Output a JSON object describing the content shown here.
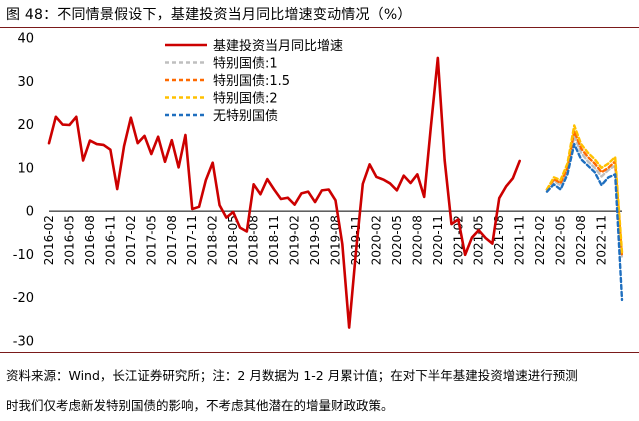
{
  "title": "图 48：不同情景假设下，基建投资当月同比增速变动情况（%）",
  "source_note_line1": "资料来源：Wind，长江证券研究所；注：2 月数据为 1-2 月累计值；在对下半年基建投资增速进行预测",
  "source_note_line2": "时我们仅考虑新发特别国债的影响，不考虑其他潜在的增量财政政策。",
  "colors": {
    "actual": "#cc0000",
    "scenario_1": "#bfbfbf",
    "scenario_1_5": "#ff6a00",
    "scenario_2": "#ffc000",
    "scenario_none": "#1f6fbf",
    "rule": "#7a1a1a"
  },
  "chart_data": {
    "type": "line",
    "title": "",
    "xlabel": "",
    "ylabel": "",
    "ylim": [
      -30,
      40
    ],
    "yticks": [
      "40",
      "30",
      "20",
      "10",
      "0",
      "-10",
      "-20",
      "-30"
    ],
    "x_tick_labels": [
      "2016-02",
      "2016-05",
      "2016-08",
      "2016-11",
      "2017-02",
      "2017-05",
      "2017-08",
      "2017-11",
      "2018-02",
      "2018-05",
      "2018-08",
      "2018-11",
      "2019-02",
      "2019-05",
      "2019-08",
      "2019-11",
      "2020-02",
      "2020-05",
      "2020-08",
      "2020-11",
      "2021-02",
      "2021-05",
      "2021-08",
      "2021-11",
      "2022-02",
      "2022-05",
      "2022-08",
      "2022-11"
    ],
    "x_start": "2016-02",
    "series": [
      {
        "name": "基建投资当月同比增速",
        "key": "actual",
        "start_index": 0,
        "values": [
          15.7,
          21.8,
          20.0,
          19.9,
          21.8,
          11.7,
          16.3,
          15.5,
          15.3,
          14.2,
          5.1,
          15.0,
          21.6,
          15.7,
          17.4,
          13.2,
          17.2,
          11.4,
          16.4,
          10.1,
          17.6,
          0.5,
          1.0,
          7.2,
          11.2,
          1.4,
          -1.5,
          -0.2,
          -3.8,
          -4.7,
          6.2,
          3.9,
          7.4,
          5.0,
          2.8,
          3.1,
          1.5,
          4.1,
          4.5,
          2.1,
          4.8,
          5.0,
          2.5,
          -7.6,
          -26.9,
          -9.4,
          6.3,
          10.8,
          7.9,
          7.3,
          6.4,
          4.8,
          8.2,
          6.5,
          8.5,
          3.3,
          19.8,
          35.4,
          11.8,
          -3.0,
          -1.9,
          -10.1,
          -6.1,
          -4.4,
          -6.2,
          -7.5,
          3.0,
          5.7,
          7.6,
          11.6
        ]
      },
      {
        "name": "特别国债:1",
        "key": "scenario_1",
        "start_index": 73,
        "values": [
          5.0,
          7.0,
          6.0,
          9.5,
          17.3,
          13.5,
          11.5,
          10.0,
          8.0,
          9.5,
          10.5,
          -11.0
        ]
      },
      {
        "name": "特别国债:1.5",
        "key": "scenario_1_5",
        "start_index": 73,
        "values": [
          5.0,
          7.4,
          6.5,
          10.0,
          18.5,
          14.5,
          12.5,
          11.0,
          9.0,
          10.0,
          11.5,
          -10.5
        ]
      },
      {
        "name": "特别国债:2",
        "key": "scenario_2",
        "start_index": 73,
        "values": [
          5.0,
          7.8,
          7.2,
          11.0,
          19.8,
          15.5,
          13.5,
          12.0,
          10.0,
          11.0,
          12.5,
          -9.5
        ]
      },
      {
        "name": "无特别国债",
        "key": "scenario_none",
        "start_index": 73,
        "values": [
          4.5,
          6.2,
          5.0,
          8.5,
          15.5,
          12.0,
          10.5,
          9.0,
          6.0,
          7.8,
          8.5,
          -20.5
        ]
      }
    ],
    "legend_position": "top-center"
  }
}
